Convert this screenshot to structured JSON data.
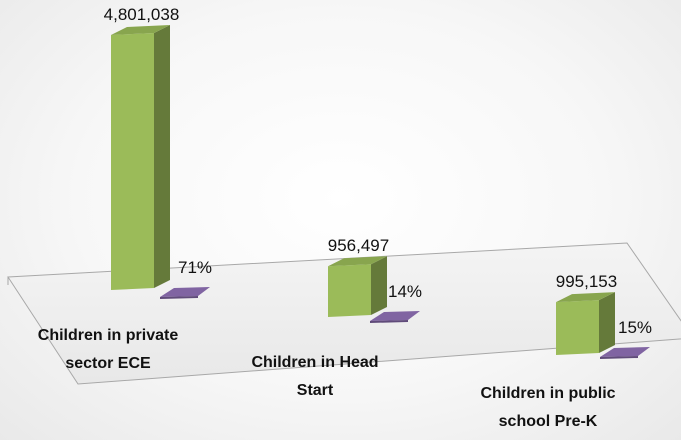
{
  "chart_data": {
    "type": "bar",
    "categories": [
      [
        "Children in private",
        "sector ECE"
      ],
      [
        "Children in Head",
        "Start"
      ],
      [
        "Children in public",
        "school Pre-K"
      ]
    ],
    "series": [
      {
        "values": [
          4801038,
          956497,
          995153
        ],
        "labels": [
          "4,801,038",
          "956,497",
          "995,153"
        ],
        "color": "#9bbb59"
      },
      {
        "values": [
          71,
          14,
          15
        ],
        "labels": [
          "71%",
          "14%",
          "15%"
        ],
        "color": "#8064a2"
      }
    ],
    "title": "",
    "xlabel": "",
    "ylabel": "",
    "ylim": [
      0,
      5000000
    ],
    "grid": false,
    "legend": "none",
    "style": "3d-column"
  }
}
